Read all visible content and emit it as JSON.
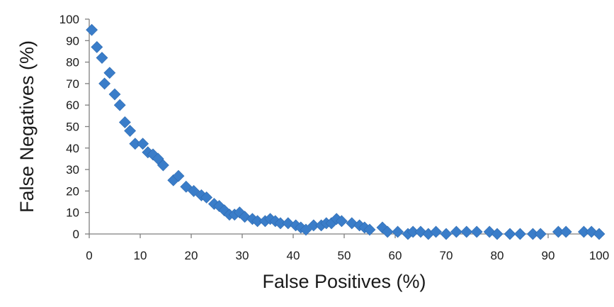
{
  "chart_data": {
    "type": "scatter",
    "title": "",
    "xlabel": "False Positives (%)",
    "ylabel": "False Negatives (%)",
    "xlim": [
      0,
      100
    ],
    "ylim": [
      0,
      100
    ],
    "x_ticks": [
      0,
      10,
      20,
      30,
      40,
      50,
      60,
      70,
      80,
      90,
      100
    ],
    "y_ticks": [
      0,
      10,
      20,
      30,
      40,
      50,
      60,
      70,
      80,
      90,
      100
    ],
    "x_tick_labels": [
      "0",
      "10",
      "20",
      "30",
      "40",
      "50",
      "60",
      "70",
      "80",
      "90",
      "100"
    ],
    "y_tick_labels": [
      "0",
      "10",
      "20",
      "30",
      "40",
      "50",
      "60",
      "70",
      "80",
      "90",
      "100"
    ],
    "grid": false,
    "legend": "none",
    "marker": "diamond",
    "color": "#3A7DC9",
    "series": [
      {
        "points": [
          [
            0.5,
            95
          ],
          [
            1.5,
            87
          ],
          [
            2.5,
            82
          ],
          [
            3.0,
            70
          ],
          [
            4.0,
            75
          ],
          [
            5.0,
            65
          ],
          [
            6.0,
            60
          ],
          [
            7.0,
            52
          ],
          [
            8.0,
            48
          ],
          [
            9.0,
            42
          ],
          [
            10.5,
            42
          ],
          [
            11.5,
            38
          ],
          [
            12.5,
            37
          ],
          [
            13.5,
            35
          ],
          [
            14.5,
            32
          ],
          [
            16.5,
            25
          ],
          [
            17.5,
            27
          ],
          [
            19.0,
            22
          ],
          [
            20.5,
            20
          ],
          [
            22.0,
            18
          ],
          [
            23.0,
            17
          ],
          [
            24.5,
            14
          ],
          [
            25.5,
            13
          ],
          [
            26.5,
            11
          ],
          [
            27.5,
            9
          ],
          [
            28.5,
            9
          ],
          [
            29.5,
            10
          ],
          [
            30.5,
            8
          ],
          [
            32.0,
            7
          ],
          [
            33.0,
            6
          ],
          [
            34.5,
            6
          ],
          [
            35.5,
            7
          ],
          [
            36.5,
            6
          ],
          [
            37.5,
            5
          ],
          [
            39.0,
            5
          ],
          [
            40.5,
            4
          ],
          [
            41.5,
            3
          ],
          [
            42.5,
            2
          ],
          [
            44.0,
            4
          ],
          [
            45.5,
            4
          ],
          [
            46.5,
            5
          ],
          [
            47.5,
            5
          ],
          [
            48.5,
            7
          ],
          [
            49.5,
            6
          ],
          [
            51.5,
            5
          ],
          [
            53.0,
            4
          ],
          [
            54.0,
            3
          ],
          [
            55.0,
            2
          ],
          [
            57.5,
            3
          ],
          [
            58.5,
            1
          ],
          [
            60.5,
            1
          ],
          [
            62.5,
            0
          ],
          [
            63.5,
            1
          ],
          [
            65.0,
            1
          ],
          [
            66.5,
            0
          ],
          [
            68.0,
            1
          ],
          [
            70.0,
            0
          ],
          [
            72.0,
            1
          ],
          [
            74.0,
            1
          ],
          [
            76.0,
            1
          ],
          [
            78.5,
            1
          ],
          [
            80.0,
            0
          ],
          [
            82.5,
            0
          ],
          [
            84.5,
            0
          ],
          [
            87.0,
            0
          ],
          [
            88.5,
            0
          ],
          [
            92.0,
            1
          ],
          [
            93.5,
            1
          ],
          [
            97.0,
            1
          ],
          [
            98.5,
            1
          ],
          [
            100.0,
            0
          ]
        ]
      }
    ]
  }
}
